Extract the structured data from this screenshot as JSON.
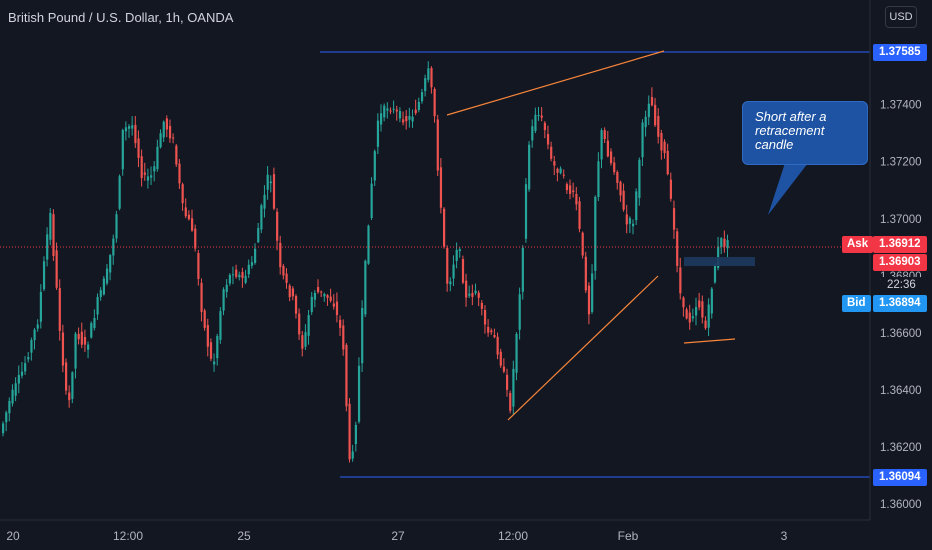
{
  "header": {
    "title": "British Pound / U.S. Dollar, 1h, OANDA"
  },
  "currency_button": "USD",
  "annotation": {
    "text": "Short after a retracement candle"
  },
  "colors": {
    "up": "#26a69a",
    "down": "#ef5350",
    "background": "#131722",
    "level": "#2962ff",
    "trendline": "#f7853a",
    "ask": "#f23645",
    "bid": "#2196f3"
  },
  "chart_data": {
    "type": "candlestick",
    "title": "British Pound / U.S. Dollar, 1h, OANDA",
    "x_ticks": [
      "20",
      "12:00",
      "25",
      "27",
      "12:00",
      "Feb",
      "3"
    ],
    "y_ticks": [
      "1.37400",
      "1.37200",
      "1.37000",
      "1.36800",
      "1.36600",
      "1.36400",
      "1.36200",
      "1.36000"
    ],
    "ylim": [
      1.3595,
      1.3788
    ],
    "levels": [
      {
        "label": "1.37585",
        "value": 1.37585
      },
      {
        "label": "1.36094",
        "value": 1.36094
      }
    ],
    "ask": {
      "label": "Ask",
      "value": "1.36912"
    },
    "last_price": "1.36903",
    "countdown": "22:36",
    "bid": {
      "label": "Bid",
      "value": "1.36894"
    },
    "grid": false
  }
}
